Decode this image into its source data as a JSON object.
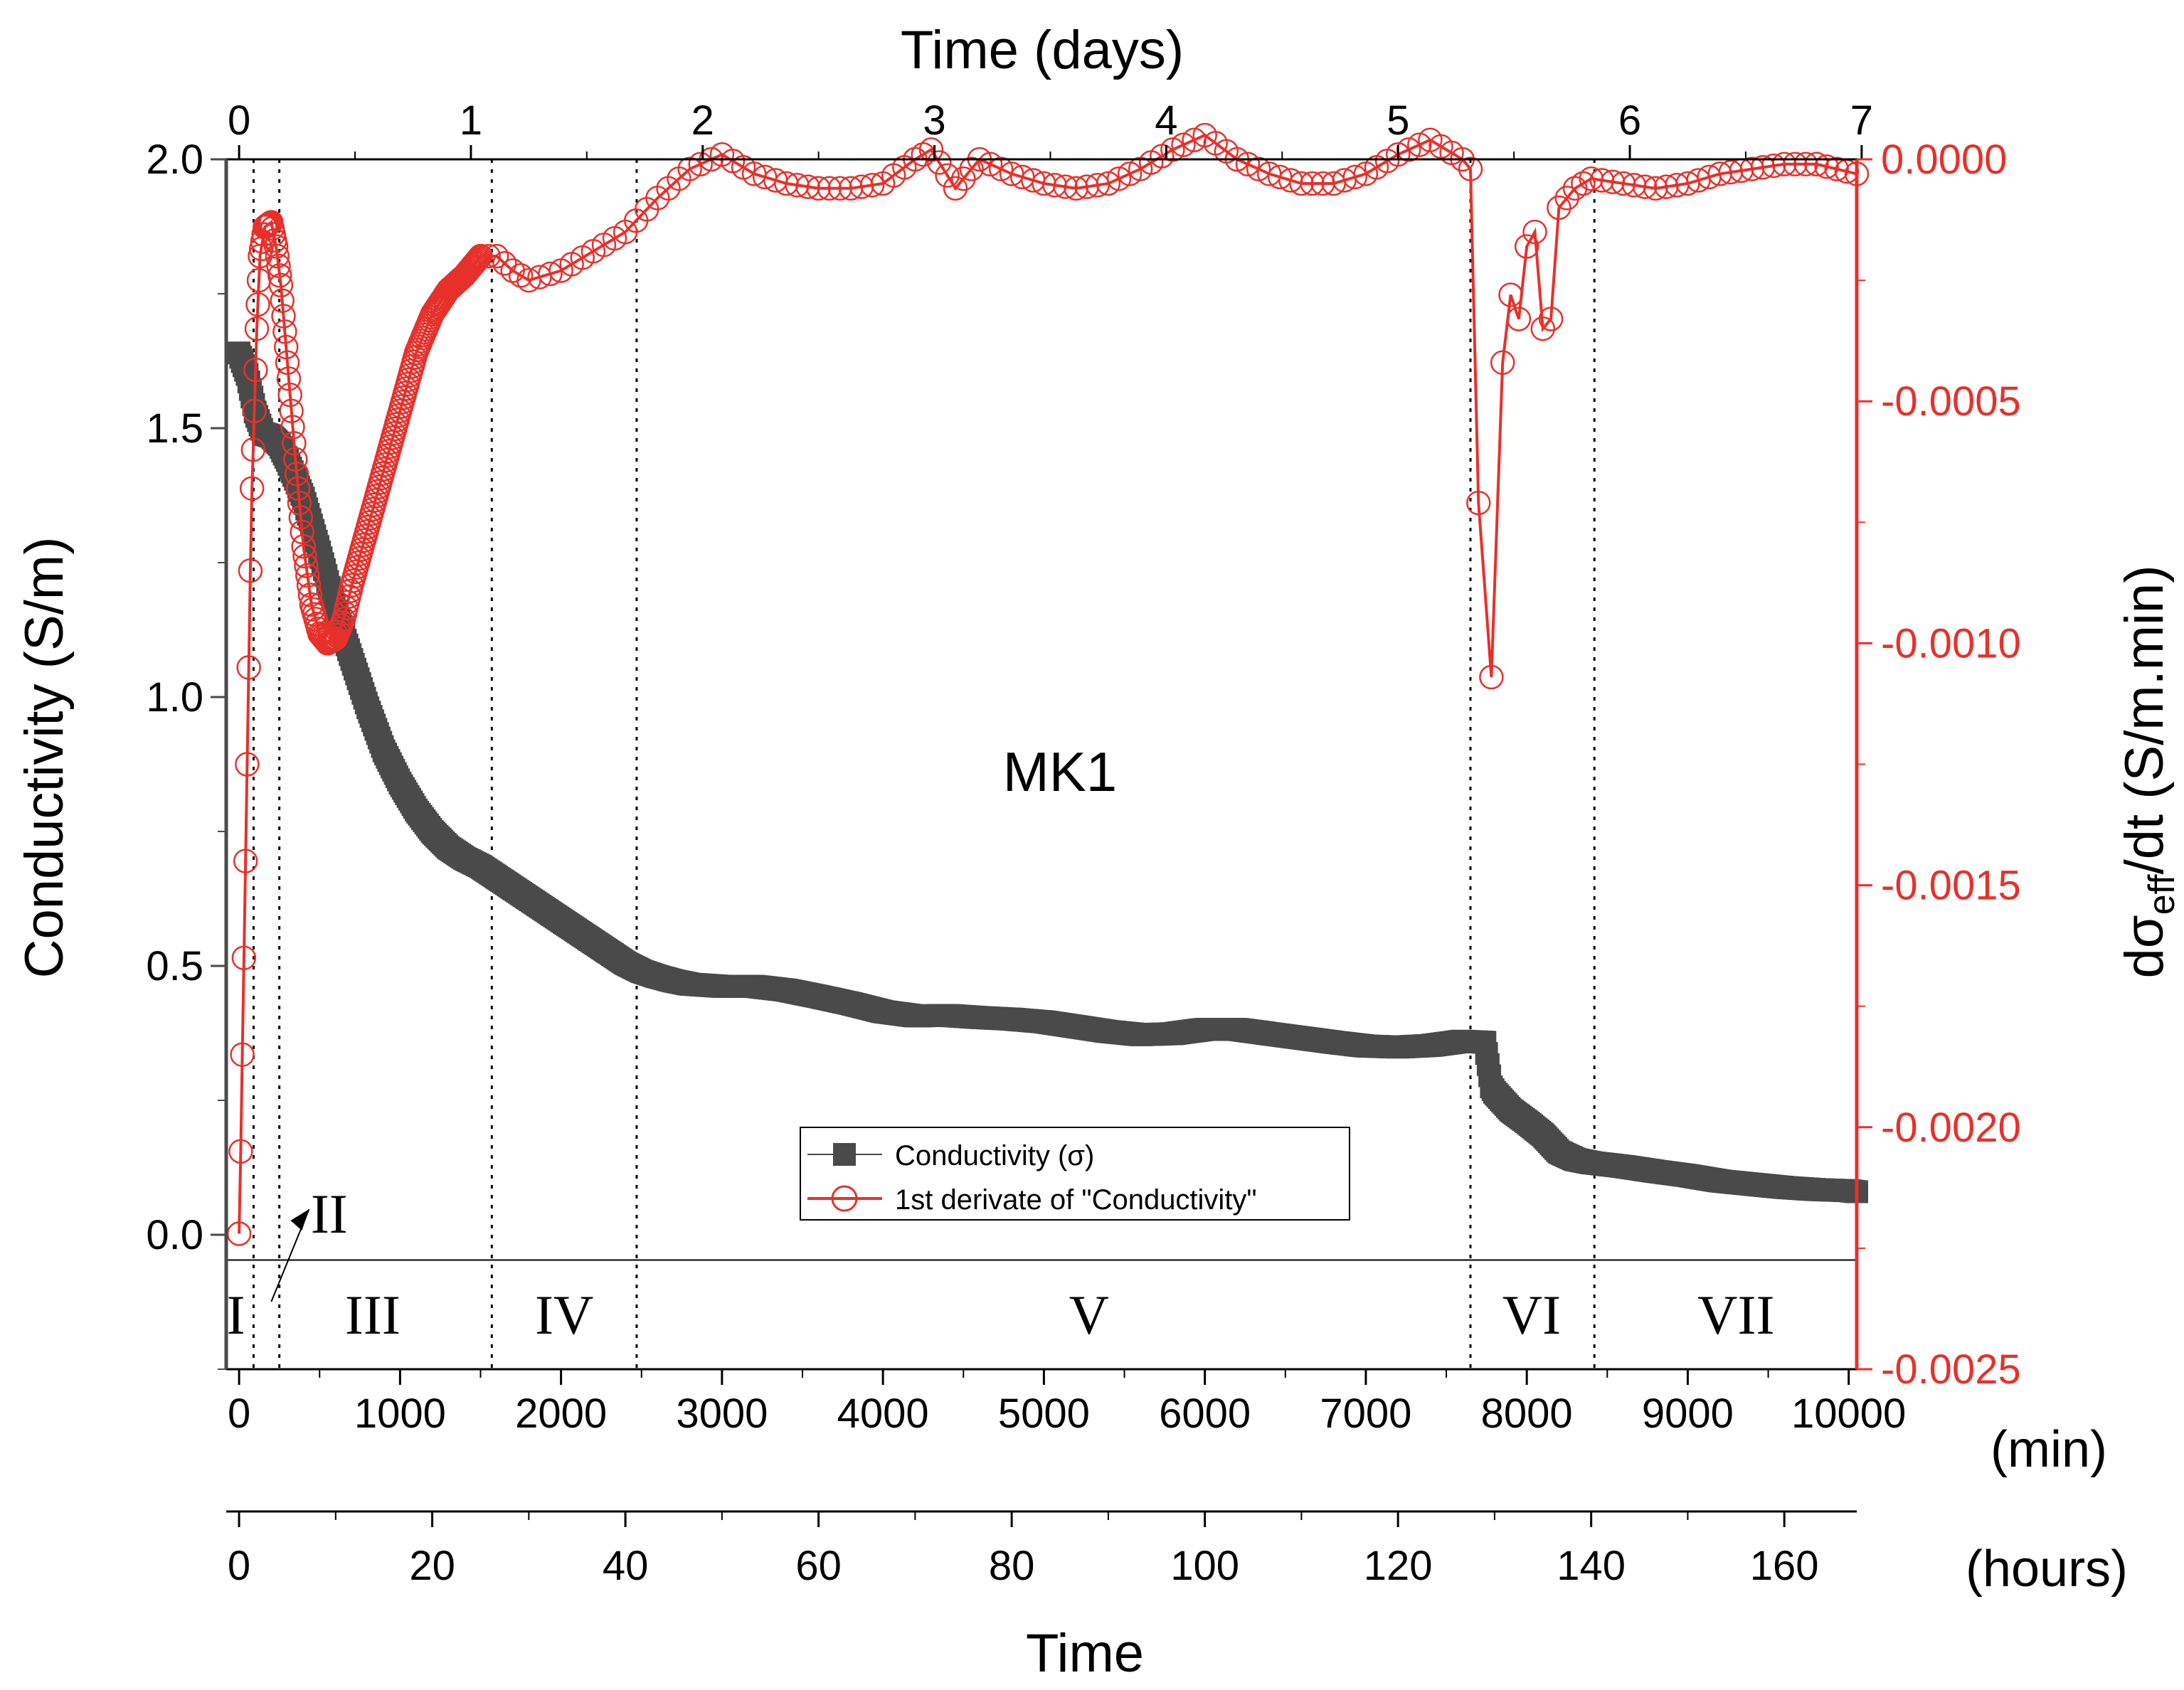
{
  "chart_data": {
    "type": "line",
    "annotation": "MK1",
    "x_bottom_min": {
      "unit_label": "(min)",
      "range": [
        -80,
        10050
      ],
      "ticks": [
        0,
        1000,
        2000,
        3000,
        4000,
        5000,
        6000,
        7000,
        8000,
        9000,
        10000
      ]
    },
    "x_bottom_hours": {
      "title": "Time",
      "unit_label": "(hours)",
      "range": [
        -1.33,
        167.5
      ],
      "ticks": [
        0,
        20,
        40,
        60,
        80,
        100,
        120,
        140,
        160
      ]
    },
    "x_top_days": {
      "title": "Time (days)",
      "range": [
        -0.0556,
        6.979
      ],
      "ticks": [
        0,
        1,
        2,
        3,
        4,
        5,
        6,
        7
      ]
    },
    "y_left": {
      "title": "Conductivity (S/m)",
      "range": [
        -0.25,
        2.0
      ],
      "ticks": [
        0.0,
        0.5,
        1.0,
        1.5,
        2.0
      ],
      "tick_labels": [
        "0.0",
        "0.5",
        "1.0",
        "1.5",
        "2.0"
      ]
    },
    "y_right": {
      "title_base": "dσ",
      "title_sub": "eff",
      "title_tail": "/dt (S/m.min)",
      "color": "#e8302a",
      "range": [
        -0.0025,
        0.0
      ],
      "ticks": [
        0.0,
        -0.0005,
        -0.001,
        -0.0015,
        -0.002,
        -0.0025
      ],
      "tick_labels": [
        "0.0000",
        "-0.0005",
        "-0.0010",
        "-0.0015",
        "-0.0020",
        "-0.0025"
      ]
    },
    "stage_boundaries_min": [
      90,
      250,
      1570,
      2470,
      7650,
      8420
    ],
    "stages": [
      {
        "label": "I",
        "x": -20
      },
      {
        "label": "III",
        "x": 830
      },
      {
        "label": "IV",
        "x": 2020
      },
      {
        "label": "V",
        "x": 5280
      },
      {
        "label": "VI",
        "x": 8030
      },
      {
        "label": "VII",
        "x": 9300
      }
    ],
    "stage_ii": {
      "label": "II",
      "x": 560,
      "arrow_from_x": 200,
      "arrow_to_x": 470
    },
    "baseline_y": -0.047,
    "legend": {
      "entries": [
        "Conductivity (σ)",
        "1st derivate of \"Conductivity\""
      ],
      "position": "lower-center"
    },
    "series": [
      {
        "name": "Conductivity (σ)",
        "axis": "left",
        "color": "#4a4a4a",
        "marker": "square",
        "points": [
          [
            0,
            1.64
          ],
          [
            50,
            1.6
          ],
          [
            100,
            1.53
          ],
          [
            150,
            1.49
          ],
          [
            200,
            1.485
          ],
          [
            250,
            1.47
          ],
          [
            300,
            1.44
          ],
          [
            400,
            1.37
          ],
          [
            500,
            1.27
          ],
          [
            600,
            1.16
          ],
          [
            700,
            1.07
          ],
          [
            800,
            0.98
          ],
          [
            900,
            0.9
          ],
          [
            1000,
            0.84
          ],
          [
            1100,
            0.79
          ],
          [
            1200,
            0.75
          ],
          [
            1300,
            0.72
          ],
          [
            1400,
            0.7
          ],
          [
            1500,
            0.685
          ],
          [
            1600,
            0.665
          ],
          [
            1700,
            0.645
          ],
          [
            1800,
            0.625
          ],
          [
            1900,
            0.605
          ],
          [
            2000,
            0.585
          ],
          [
            2100,
            0.565
          ],
          [
            2200,
            0.545
          ],
          [
            2300,
            0.525
          ],
          [
            2400,
            0.505
          ],
          [
            2500,
            0.49
          ],
          [
            2600,
            0.48
          ],
          [
            2700,
            0.472
          ],
          [
            2800,
            0.466
          ],
          [
            3000,
            0.462
          ],
          [
            3200,
            0.462
          ],
          [
            3400,
            0.455
          ],
          [
            3600,
            0.443
          ],
          [
            3800,
            0.43
          ],
          [
            4000,
            0.415
          ],
          [
            4200,
            0.407
          ],
          [
            4400,
            0.408
          ],
          [
            4600,
            0.404
          ],
          [
            4800,
            0.401
          ],
          [
            5000,
            0.396
          ],
          [
            5200,
            0.387
          ],
          [
            5400,
            0.378
          ],
          [
            5600,
            0.372
          ],
          [
            5800,
            0.374
          ],
          [
            6000,
            0.382
          ],
          [
            6200,
            0.382
          ],
          [
            6400,
            0.374
          ],
          [
            6600,
            0.366
          ],
          [
            6800,
            0.358
          ],
          [
            7000,
            0.351
          ],
          [
            7200,
            0.349
          ],
          [
            7400,
            0.352
          ],
          [
            7600,
            0.36
          ],
          [
            7740,
            0.358
          ],
          [
            7780,
            0.275
          ],
          [
            7800,
            0.265
          ],
          [
            7900,
            0.232
          ],
          [
            8000,
            0.21
          ],
          [
            8100,
            0.186
          ],
          [
            8200,
            0.154
          ],
          [
            8300,
            0.14
          ],
          [
            8400,
            0.134
          ],
          [
            8600,
            0.127
          ],
          [
            8800,
            0.118
          ],
          [
            9000,
            0.11
          ],
          [
            9200,
            0.1
          ],
          [
            9400,
            0.094
          ],
          [
            9600,
            0.088
          ],
          [
            9800,
            0.084
          ],
          [
            10000,
            0.082
          ],
          [
            10050,
            0.08
          ]
        ]
      },
      {
        "name": "1st derivate of \"Conductivity\"",
        "axis": "right",
        "color": "#e8302a",
        "marker": "open-circle",
        "points": [
          [
            0,
            -0.00222
          ],
          [
            10,
            -0.00205
          ],
          [
            20,
            -0.00185
          ],
          [
            30,
            -0.00165
          ],
          [
            40,
            -0.00145
          ],
          [
            50,
            -0.00125
          ],
          [
            60,
            -0.00105
          ],
          [
            70,
            -0.00085
          ],
          [
            80,
            -0.00068
          ],
          [
            95,
            -0.00052
          ],
          [
            110,
            -0.00035
          ],
          [
            130,
            -0.0002
          ],
          [
            160,
            -0.00014
          ],
          [
            200,
            -0.00013
          ],
          [
            230,
            -0.00018
          ],
          [
            260,
            -0.00026
          ],
          [
            300,
            -0.00042
          ],
          [
            350,
            -0.00062
          ],
          [
            400,
            -0.0008
          ],
          [
            450,
            -0.00092
          ],
          [
            500,
            -0.00098
          ],
          [
            550,
            -0.001
          ],
          [
            600,
            -0.00099
          ],
          [
            650,
            -0.00095
          ],
          [
            700,
            -0.00088
          ],
          [
            800,
            -0.00076
          ],
          [
            900,
            -0.00064
          ],
          [
            1000,
            -0.00052
          ],
          [
            1100,
            -0.0004
          ],
          [
            1200,
            -0.00032
          ],
          [
            1300,
            -0.00027
          ],
          [
            1400,
            -0.00024
          ],
          [
            1500,
            -0.0002
          ],
          [
            1600,
            -0.0002
          ],
          [
            1700,
            -0.00023
          ],
          [
            1800,
            -0.00025
          ],
          [
            2000,
            -0.00023
          ],
          [
            2200,
            -0.00019
          ],
          [
            2400,
            -0.00015
          ],
          [
            2600,
            -8e-05
          ],
          [
            2800,
            -2e-05
          ],
          [
            3000,
            1e-05
          ],
          [
            3200,
            -3e-05
          ],
          [
            3400,
            -5e-05
          ],
          [
            3600,
            -6e-05
          ],
          [
            3800,
            -6e-05
          ],
          [
            4000,
            -5e-05
          ],
          [
            4200,
            0.0
          ],
          [
            4300,
            2e-05
          ],
          [
            4450,
            -6e-05
          ],
          [
            4600,
            0.0
          ],
          [
            4800,
            -3e-05
          ],
          [
            5000,
            -5e-05
          ],
          [
            5200,
            -6e-05
          ],
          [
            5400,
            -5e-05
          ],
          [
            5600,
            -2e-05
          ],
          [
            5800,
            2e-05
          ],
          [
            6000,
            5e-05
          ],
          [
            6200,
            0.0
          ],
          [
            6400,
            -3e-05
          ],
          [
            6600,
            -5e-05
          ],
          [
            6800,
            -5e-05
          ],
          [
            7000,
            -3e-05
          ],
          [
            7200,
            1e-05
          ],
          [
            7400,
            4e-05
          ],
          [
            7600,
            0.0
          ],
          [
            7650,
            -2e-05
          ],
          [
            7700,
            -0.00071
          ],
          [
            7780,
            -0.00107
          ],
          [
            7850,
            -0.00042
          ],
          [
            7900,
            -0.00028
          ],
          [
            7950,
            -0.00033
          ],
          [
            8000,
            -0.00018
          ],
          [
            8050,
            -0.00015
          ],
          [
            8100,
            -0.00035
          ],
          [
            8150,
            -0.00033
          ],
          [
            8200,
            -0.0001
          ],
          [
            8300,
            -6e-05
          ],
          [
            8400,
            -4e-05
          ],
          [
            8600,
            -5e-05
          ],
          [
            8800,
            -6e-05
          ],
          [
            9000,
            -5e-05
          ],
          [
            9200,
            -3e-05
          ],
          [
            9400,
            -2e-05
          ],
          [
            9600,
            -1e-05
          ],
          [
            9800,
            -1e-05
          ],
          [
            10050,
            -3e-05
          ]
        ]
      }
    ]
  }
}
